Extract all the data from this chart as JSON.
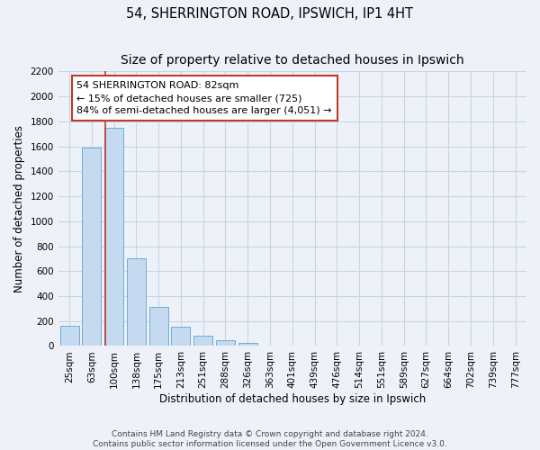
{
  "title": "54, SHERRINGTON ROAD, IPSWICH, IP1 4HT",
  "subtitle": "Size of property relative to detached houses in Ipswich",
  "xlabel": "Distribution of detached houses by size in Ipswich",
  "ylabel": "Number of detached properties",
  "bar_labels": [
    "25sqm",
    "63sqm",
    "100sqm",
    "138sqm",
    "175sqm",
    "213sqm",
    "251sqm",
    "288sqm",
    "326sqm",
    "363sqm",
    "401sqm",
    "439sqm",
    "476sqm",
    "514sqm",
    "551sqm",
    "589sqm",
    "627sqm",
    "664sqm",
    "702sqm",
    "739sqm",
    "777sqm"
  ],
  "bar_heights": [
    160,
    1590,
    1750,
    700,
    310,
    155,
    80,
    45,
    25,
    0,
    0,
    0,
    0,
    0,
    0,
    0,
    0,
    0,
    0,
    0,
    0
  ],
  "bar_color": "#c5d9f0",
  "bar_edge_color": "#6aaed6",
  "bar_width": 0.85,
  "vline_x": 1.6,
  "vline_color": "#c0392b",
  "annotation_text": "54 SHERRINGTON ROAD: 82sqm\n← 15% of detached houses are smaller (725)\n84% of semi-detached houses are larger (4,051) →",
  "annotation_box_edge_color": "#c0392b",
  "annotation_box_face_color": "#ffffff",
  "ylim": [
    0,
    2200
  ],
  "yticks": [
    0,
    200,
    400,
    600,
    800,
    1000,
    1200,
    1400,
    1600,
    1800,
    2000,
    2200
  ],
  "grid_color": "#c5d5e8",
  "background_color": "#eef2f8",
  "footer_line1": "Contains HM Land Registry data © Crown copyright and database right 2024.",
  "footer_line2": "Contains public sector information licensed under the Open Government Licence v3.0.",
  "title_fontsize": 10.5,
  "axis_label_fontsize": 8.5,
  "tick_fontsize": 7.5,
  "annotation_fontsize": 8.0,
  "footer_fontsize": 6.5
}
